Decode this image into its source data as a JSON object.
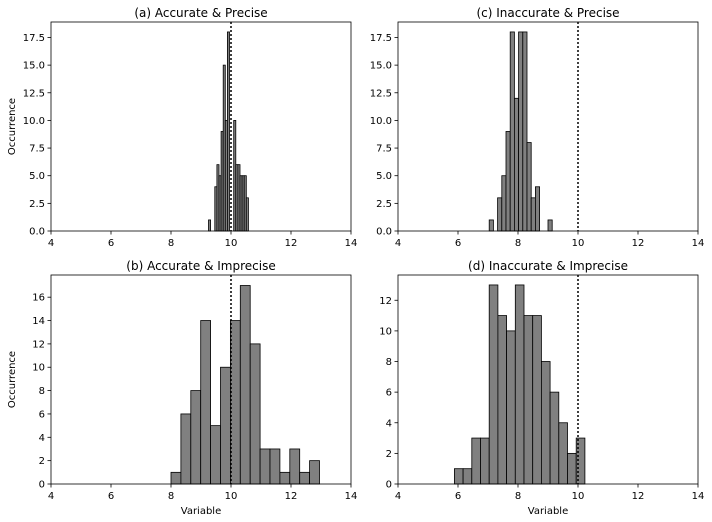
{
  "chart_data": [
    {
      "type": "bar",
      "title": "(a) Accurate & Precise",
      "xlabel": "",
      "ylabel": "Occurrence",
      "xlim": [
        4,
        14
      ],
      "ylim": [
        0,
        18.9
      ],
      "xticks": [
        "4",
        "6",
        "8",
        "10",
        "12",
        "14"
      ],
      "yticks": [
        "0.0",
        "2.5",
        "5.0",
        "7.5",
        "10.0",
        "12.5",
        "15.0",
        "17.5"
      ],
      "reference_line_x": 10,
      "bin_width": 0.07,
      "bin_starts": [
        9.25,
        9.32,
        9.46,
        9.53,
        9.6,
        9.67,
        9.74,
        9.81,
        9.88,
        9.95,
        10.02,
        10.09,
        10.16,
        10.23,
        10.3,
        10.37,
        10.44,
        10.51
      ],
      "values": [
        1,
        0,
        4,
        6,
        5,
        9,
        15,
        10,
        18,
        0,
        0,
        10,
        6,
        6,
        5,
        5,
        5,
        3
      ],
      "bar_color": "#808080"
    },
    {
      "type": "bar",
      "title": "(c) Inaccurate & Precise",
      "xlabel": "",
      "ylabel": "",
      "xlim": [
        4,
        14
      ],
      "ylim": [
        0,
        18.9
      ],
      "xticks": [
        "4",
        "6",
        "8",
        "10",
        "12",
        "14"
      ],
      "yticks": [
        "0.0",
        "2.5",
        "5.0",
        "7.5",
        "10.0",
        "12.5",
        "15.0",
        "17.5"
      ],
      "reference_line_x": 10,
      "bin_width": 0.14,
      "bin_starts": [
        7.04,
        7.18,
        7.32,
        7.46,
        7.6,
        7.74,
        7.88,
        8.02,
        8.16,
        8.3,
        8.44,
        8.58,
        8.72,
        8.86,
        9.0
      ],
      "values": [
        1,
        0,
        3,
        5,
        9,
        18,
        12,
        18,
        18,
        8,
        3,
        4,
        0,
        0,
        1
      ],
      "bar_color": "#808080"
    },
    {
      "type": "bar",
      "title": "(b) Accurate & Imprecise",
      "xlabel": "Variable",
      "ylabel": "Occurrence",
      "xlim": [
        4,
        14
      ],
      "ylim": [
        0,
        17.9
      ],
      "xticks": [
        "4",
        "6",
        "8",
        "10",
        "12",
        "14"
      ],
      "yticks": [
        "0",
        "2",
        "4",
        "6",
        "8",
        "10",
        "12",
        "14",
        "16"
      ],
      "reference_line_x": 10,
      "bin_width": 0.33,
      "bin_starts": [
        8.0,
        8.33,
        8.66,
        8.99,
        9.32,
        9.65,
        9.98,
        10.31,
        10.64,
        10.97,
        11.3,
        11.63,
        11.96,
        12.29,
        12.62
      ],
      "values": [
        1,
        6,
        8,
        14,
        5,
        10,
        14,
        17,
        12,
        3,
        3,
        1,
        3,
        1,
        2
      ],
      "bar_color": "#808080"
    },
    {
      "type": "bar",
      "title": "(d) Inaccurate & Imprecise",
      "xlabel": "Variable",
      "ylabel": "",
      "xlim": [
        4,
        14
      ],
      "ylim": [
        0,
        13.65
      ],
      "xticks": [
        "4",
        "6",
        "8",
        "10",
        "12",
        "14"
      ],
      "yticks": [
        "0",
        "2",
        "4",
        "6",
        "8",
        "10",
        "12"
      ],
      "reference_line_x": 10,
      "bin_width": 0.29,
      "bin_starts": [
        5.88,
        6.17,
        6.46,
        6.75,
        7.04,
        7.33,
        7.62,
        7.91,
        8.2,
        8.49,
        8.78,
        9.07,
        9.36,
        9.65,
        9.94
      ],
      "values": [
        1,
        1,
        3,
        3,
        13,
        11,
        10,
        13,
        11,
        11,
        8,
        6,
        4,
        2,
        3
      ],
      "bar_color": "#808080"
    }
  ]
}
